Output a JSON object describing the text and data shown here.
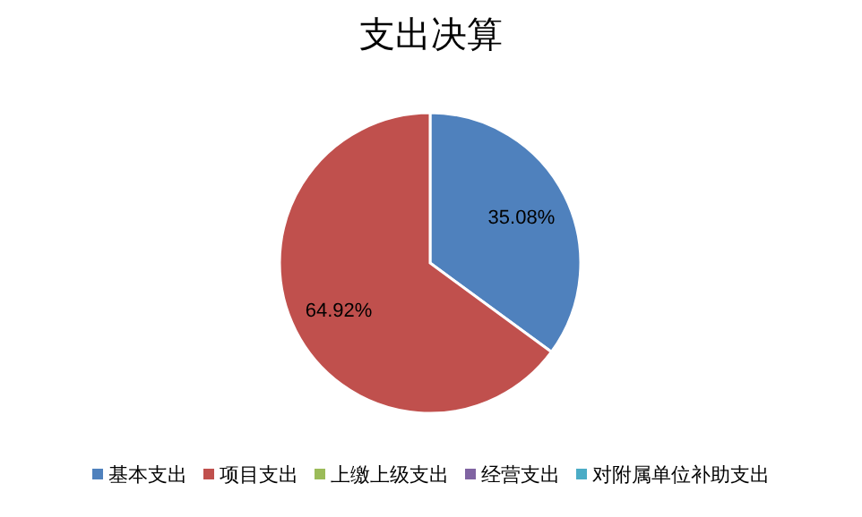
{
  "chart_data": {
    "type": "pie",
    "title": "支出决算",
    "categories": [
      "基本支出",
      "项目支出",
      "上缴上级支出",
      "经营支出",
      "对附属单位补助支出"
    ],
    "values": [
      35.08,
      64.92,
      0,
      0,
      0
    ],
    "colors": [
      "#4f81bd",
      "#c0504d",
      "#9bbb59",
      "#8064a2",
      "#4bacc6"
    ],
    "value_labels": [
      "35.08%",
      "64.92%",
      null,
      null,
      null
    ],
    "legend": "bottom"
  }
}
